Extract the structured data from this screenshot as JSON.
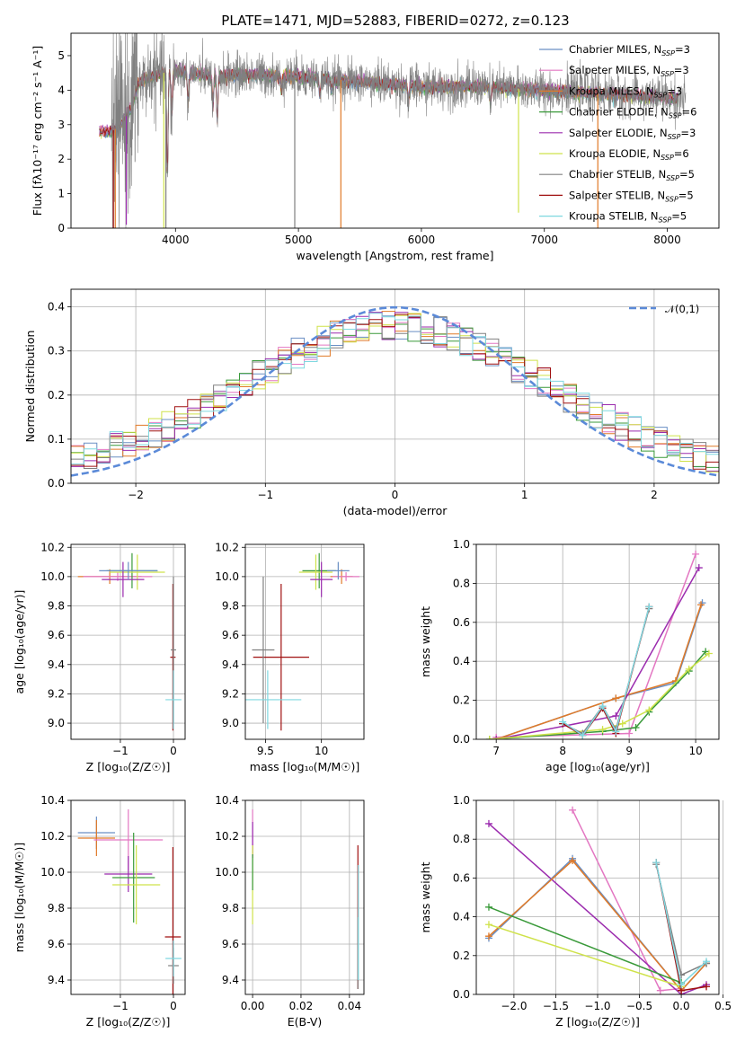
{
  "figure": {
    "title": "PLATE=1471, MJD=52883, FIBERID=0272, z=0.123"
  },
  "colors": {
    "chabrier_miles": "#6a8fc4",
    "salpeter_miles": "#e377c2",
    "kroupa_miles": "#e07a28",
    "chabrier_elodie": "#3a9a3a",
    "salpeter_elodie": "#9b2bae",
    "kroupa_elodie": "#cfe24a",
    "chabrier_stelib": "#808080",
    "salpeter_stelib": "#a01010",
    "kroupa_stelib": "#7fd8e0",
    "normal": "#5b8ad8",
    "grid": "#b0b0b0"
  },
  "legend": [
    {
      "label": "Chabrier MILES, N",
      "sub": "SSP",
      "suffix": "=3",
      "color_key": "chabrier_miles"
    },
    {
      "label": "Salpeter MILES, N",
      "sub": "SSP",
      "suffix": "=3",
      "color_key": "salpeter_miles"
    },
    {
      "label": "Kroupa MILES, N",
      "sub": "SSP",
      "suffix": "=3",
      "color_key": "kroupa_miles"
    },
    {
      "label": "Chabrier ELODIE, N",
      "sub": "SSP",
      "suffix": "=6",
      "color_key": "chabrier_elodie"
    },
    {
      "label": "Salpeter ELODIE, N",
      "sub": "SSP",
      "suffix": "=3",
      "color_key": "salpeter_elodie"
    },
    {
      "label": "Kroupa ELODIE, N",
      "sub": "SSP",
      "suffix": "=6",
      "color_key": "kroupa_elodie"
    },
    {
      "label": "Chabrier STELIB, N",
      "sub": "SSP",
      "suffix": "=5",
      "color_key": "chabrier_stelib"
    },
    {
      "label": "Salpeter STELIB, N",
      "sub": "SSP",
      "suffix": "=5",
      "color_key": "salpeter_stelib"
    },
    {
      "label": "Kroupa STELIB, N",
      "sub": "SSP",
      "suffix": "=5",
      "color_key": "kroupa_stelib"
    }
  ],
  "chart_data": [
    {
      "id": "spectrum",
      "type": "line",
      "xlabel": "wavelength [Angstrom, rest frame]",
      "ylabel": "Flux [fλ10⁻¹⁷ erg cm⁻² s⁻¹ A⁻¹]",
      "xlim": [
        3150,
        8420
      ],
      "ylim": [
        0,
        5.65
      ],
      "xticks": [
        4000,
        5000,
        6000,
        7000,
        8000
      ],
      "yticks": [
        0,
        1,
        2,
        3,
        4,
        5
      ],
      "legend_position": "right",
      "observed_color_key": "chabrier_stelib",
      "observed_range": [
        3480,
        8150
      ],
      "model_range": [
        3380,
        8090
      ],
      "continuum_knots": {
        "x": [
          3380,
          3480,
          3560,
          3640,
          3700,
          3800,
          3900,
          4000,
          4100,
          4300,
          4500,
          5000,
          5500,
          6000,
          6500,
          7000,
          7500,
          8100
        ],
        "y": [
          2.8,
          2.8,
          3.0,
          3.5,
          4.2,
          4.4,
          4.5,
          4.55,
          4.5,
          4.4,
          4.45,
          4.4,
          4.25,
          4.1,
          4.1,
          4.0,
          3.9,
          3.75
        ]
      },
      "absorption_features": [
        {
          "x": 3934,
          "depth": 3.5
        },
        {
          "x": 3969,
          "depth": 1.5
        },
        {
          "x": 4102,
          "depth": 0.9
        },
        {
          "x": 4305,
          "depth": 1.0
        },
        {
          "x": 4340,
          "depth": 1.5
        },
        {
          "x": 4861,
          "depth": 0.5
        },
        {
          "x": 5175,
          "depth": 0.6
        },
        {
          "x": 5270,
          "depth": 0.4
        },
        {
          "x": 5895,
          "depth": 0.6
        },
        {
          "x": 6563,
          "depth": 0.6
        }
      ],
      "spikes": [
        {
          "x": 3495,
          "ymin": 0,
          "color_key": "salpeter_stelib"
        },
        {
          "x": 3510,
          "ymin": 0,
          "color_key": "kroupa_miles"
        },
        {
          "x": 3600,
          "ymin": 0.1,
          "color_key": "salpeter_elodie"
        },
        {
          "x": 3905,
          "ymin": 0,
          "color_key": "kroupa_elodie"
        },
        {
          "x": 3922,
          "ymin": 0,
          "color_key": "chabrier_stelib"
        },
        {
          "x": 4970,
          "ymin": 0,
          "color_key": "chabrier_stelib"
        },
        {
          "x": 5345,
          "ymin": 0,
          "color_key": "kroupa_miles"
        },
        {
          "x": 6790,
          "ymin": 0.45,
          "color_key": "kroupa_elodie"
        },
        {
          "x": 7435,
          "ymin": 0,
          "color_key": "kroupa_miles"
        }
      ]
    },
    {
      "id": "residuals",
      "type": "histogram",
      "xlabel": "(data-model)/error",
      "ylabel": "Normed distribution",
      "xlim": [
        -2.5,
        2.5
      ],
      "ylim": [
        0,
        0.44
      ],
      "xticks": [
        -2,
        -1,
        0,
        1,
        2
      ],
      "yticks": [
        0.0,
        0.1,
        0.2,
        0.3,
        0.4
      ],
      "bin_width": 0.1,
      "normal_label": "𝒩(0,1)",
      "legend_position": "top-right"
    },
    {
      "id": "age_vs_Z",
      "type": "errorbar",
      "xlabel": "Z [log₁₀(Z/Z☉)]",
      "ylabel": "age  [log₁₀(age/yr)]",
      "xlim": [
        -1.93,
        0.22
      ],
      "ylim": [
        8.89,
        10.22
      ],
      "xticks": [
        -1,
        0
      ],
      "yticks": [
        9.0,
        9.2,
        9.4,
        9.6,
        9.8,
        10.0,
        10.2
      ],
      "points": [
        {
          "k": "kroupa_miles",
          "x": -1.2,
          "xe": 0.6,
          "y": 10.0,
          "ye": 0.05
        },
        {
          "k": "salpeter_miles",
          "x": -1.05,
          "xe": 0.65,
          "y": 10.0,
          "ye": 0.03
        },
        {
          "k": "chabrier_elodie",
          "x": -0.78,
          "xe": 0.48,
          "y": 10.04,
          "ye": 0.12
        },
        {
          "k": "kroupa_elodie",
          "x": -0.68,
          "xe": 0.52,
          "y": 10.03,
          "ye": 0.12
        },
        {
          "k": "salpeter_elodie",
          "x": -0.95,
          "xe": 0.4,
          "y": 9.98,
          "ye": 0.12
        },
        {
          "k": "chabrier_miles",
          "x": -0.85,
          "xe": 0.55,
          "y": 10.04,
          "ye": 0.06
        },
        {
          "k": "salpeter_stelib",
          "x": -0.01,
          "xe": 0.05,
          "y": 9.45,
          "ye": 0.5
        },
        {
          "k": "chabrier_stelib",
          "x": 0.0,
          "xe": 0.05,
          "y": 9.5,
          "ye": 0.5
        },
        {
          "k": "kroupa_stelib",
          "x": 0.0,
          "xe": 0.15,
          "y": 9.16,
          "ye": 0.2
        }
      ]
    },
    {
      "id": "age_vs_mass",
      "type": "errorbar",
      "xlabel": "mass [log₁₀(M/M☉)]",
      "ylabel": "",
      "xlim": [
        9.32,
        10.38
      ],
      "ylim": [
        8.89,
        10.22
      ],
      "xticks": [
        9.5,
        10.0
      ],
      "yticks": [
        9.0,
        9.2,
        9.4,
        9.6,
        9.8,
        10.0,
        10.2
      ],
      "points": [
        {
          "k": "kroupa_miles",
          "x": 10.18,
          "xe": 0.1,
          "y": 10.0,
          "ye": 0.05
        },
        {
          "k": "salpeter_miles",
          "x": 10.22,
          "xe": 0.12,
          "y": 10.0,
          "ye": 0.03
        },
        {
          "k": "chabrier_elodie",
          "x": 9.98,
          "xe": 0.15,
          "y": 10.04,
          "ye": 0.12
        },
        {
          "k": "kroupa_elodie",
          "x": 9.95,
          "xe": 0.15,
          "y": 10.03,
          "ye": 0.12
        },
        {
          "k": "salpeter_elodie",
          "x": 10.0,
          "xe": 0.1,
          "y": 9.98,
          "ye": 0.12
        },
        {
          "k": "chabrier_miles",
          "x": 10.15,
          "xe": 0.1,
          "y": 10.04,
          "ye": 0.06
        },
        {
          "k": "salpeter_stelib",
          "x": 9.64,
          "xe": 0.25,
          "y": 9.45,
          "ye": 0.5
        },
        {
          "k": "chabrier_stelib",
          "x": 9.48,
          "xe": 0.1,
          "y": 9.5,
          "ye": 0.5
        },
        {
          "k": "kroupa_stelib",
          "x": 9.52,
          "xe": 0.3,
          "y": 9.16,
          "ye": 0.2
        }
      ]
    },
    {
      "id": "weight_vs_age",
      "type": "line",
      "xlabel": "age  [log₁₀(age/yr)]",
      "ylabel": "mass weight",
      "xlim": [
        6.7,
        10.35
      ],
      "ylim": [
        0,
        1
      ],
      "xticks": [
        7,
        8,
        9,
        10
      ],
      "yticks": [
        0.0,
        0.2,
        0.4,
        0.6,
        0.8,
        1.0
      ],
      "series": [
        {
          "k": "chabrier_miles",
          "x": [
            7.0,
            8.8,
            9.7,
            10.1
          ],
          "y": [
            0.0,
            0.21,
            0.29,
            0.7
          ]
        },
        {
          "k": "salpeter_miles",
          "x": [
            7.0,
            9.0,
            10.0
          ],
          "y": [
            0.01,
            0.03,
            0.95
          ]
        },
        {
          "k": "kroupa_miles",
          "x": [
            7.0,
            8.8,
            9.7,
            10.08
          ],
          "y": [
            0.0,
            0.21,
            0.3,
            0.69
          ]
        },
        {
          "k": "chabrier_elodie",
          "x": [
            6.9,
            8.6,
            9.1,
            9.3,
            9.9,
            10.15
          ],
          "y": [
            0.0,
            0.04,
            0.06,
            0.14,
            0.35,
            0.45
          ]
        },
        {
          "k": "salpeter_elodie",
          "x": [
            7.0,
            8.8,
            10.05
          ],
          "y": [
            0.0,
            0.12,
            0.88
          ]
        },
        {
          "k": "kroupa_elodie",
          "x": [
            6.9,
            8.6,
            8.9,
            9.3,
            9.9,
            10.2
          ],
          "y": [
            0.0,
            0.05,
            0.08,
            0.15,
            0.36,
            0.44
          ]
        },
        {
          "k": "chabrier_stelib",
          "x": [
            8.0,
            8.3,
            8.6,
            8.8,
            9.3
          ],
          "y": [
            0.08,
            0.03,
            0.17,
            0.05,
            0.67
          ]
        },
        {
          "k": "salpeter_stelib",
          "x": [
            8.0,
            8.3,
            8.6,
            8.8,
            9.3
          ],
          "y": [
            0.08,
            0.02,
            0.16,
            0.03,
            0.68
          ]
        },
        {
          "k": "kroupa_stelib",
          "x": [
            8.0,
            8.3,
            8.6,
            8.8,
            9.3
          ],
          "y": [
            0.09,
            0.02,
            0.17,
            0.04,
            0.68
          ]
        }
      ]
    },
    {
      "id": "mass_vs_Z",
      "type": "errorbar",
      "xlabel": "Z [log₁₀(Z/Z☉)]",
      "ylabel": "mass [log₁₀(M/M☉)]",
      "xlim": [
        -1.93,
        0.22
      ],
      "ylim": [
        9.32,
        10.4
      ],
      "xticks": [
        -1,
        0
      ],
      "yticks": [
        9.4,
        9.6,
        9.8,
        10.0,
        10.2,
        10.4
      ],
      "points": [
        {
          "k": "chabrier_miles",
          "x": -1.45,
          "xe": 0.35,
          "y": 10.22,
          "ye": 0.09
        },
        {
          "k": "kroupa_miles",
          "x": -1.45,
          "xe": 0.35,
          "y": 10.19,
          "ye": 0.1
        },
        {
          "k": "salpeter_miles",
          "x": -0.85,
          "xe": 0.65,
          "y": 10.18,
          "ye": 0.17
        },
        {
          "k": "salpeter_elodie",
          "x": -0.85,
          "xe": 0.45,
          "y": 9.99,
          "ye": 0.1
        },
        {
          "k": "chabrier_elodie",
          "x": -0.75,
          "xe": 0.4,
          "y": 9.97,
          "ye": 0.25
        },
        {
          "k": "kroupa_elodie",
          "x": -0.7,
          "xe": 0.45,
          "y": 9.93,
          "ye": 0.22
        },
        {
          "k": "salpeter_stelib",
          "x": -0.01,
          "xe": 0.15,
          "y": 9.64,
          "ye": 0.5
        },
        {
          "k": "chabrier_stelib",
          "x": 0.0,
          "xe": 0.1,
          "y": 9.48,
          "ye": 0.1
        },
        {
          "k": "kroupa_stelib",
          "x": 0.0,
          "xe": 0.15,
          "y": 9.52,
          "ye": 0.1
        }
      ]
    },
    {
      "id": "mass_vs_EBV",
      "type": "errorbar",
      "xlabel": "E(B-V)",
      "ylabel": "",
      "xlim": [
        -0.003,
        0.046
      ],
      "ylim": [
        9.32,
        10.4
      ],
      "xticks": [
        0.0,
        0.02,
        0.04
      ],
      "xticklabels": [
        "0.00",
        "0.02",
        "0.04"
      ],
      "yticks": [
        9.4,
        9.6,
        9.8,
        10.0,
        10.2,
        10.4
      ],
      "points": [
        {
          "k": "salpeter_miles",
          "x": 0.0,
          "xe": 0,
          "y": 10.22,
          "ye": 0.13
        },
        {
          "k": "salpeter_elodie",
          "x": 0.0,
          "xe": 0,
          "y": 10.18,
          "ye": 0.1
        },
        {
          "k": "kroupa_elodie",
          "x": 0.0,
          "xe": 0,
          "y": 9.93,
          "ye": 0.22
        },
        {
          "k": "chabrier_elodie",
          "x": 0.0,
          "xe": 0,
          "y": 10.0,
          "ye": 0.1
        },
        {
          "k": "salpeter_stelib",
          "x": 0.0435,
          "xe": 0,
          "y": 9.75,
          "ye": 0.4
        },
        {
          "k": "chabrier_stelib",
          "x": 0.0435,
          "xe": 0,
          "y": 9.55,
          "ye": 0.2
        },
        {
          "k": "kroupa_stelib",
          "x": 0.0437,
          "xe": 0,
          "y": 9.72,
          "ye": 0.32
        }
      ]
    },
    {
      "id": "weight_vs_Z",
      "type": "line",
      "xlabel": "Z [log₁₀(Z/Z☉)]",
      "ylabel": "mass weight",
      "xlim": [
        -2.45,
        0.45
      ],
      "ylim": [
        0,
        1
      ],
      "xticks": [
        -2.0,
        -1.5,
        -1.0,
        -0.5,
        0.0,
        0.5
      ],
      "xticklabels": [
        "−2.0",
        "−1.5",
        "−1.0",
        "−0.5",
        "0.0",
        "0.5"
      ],
      "yticks": [
        0.0,
        0.2,
        0.4,
        0.6,
        0.8,
        1.0
      ],
      "series": [
        {
          "k": "salpeter_miles",
          "x": [
            -1.3,
            -0.25,
            0.0
          ],
          "y": [
            0.95,
            0.02,
            0.03
          ]
        },
        {
          "k": "salpeter_elodie",
          "x": [
            -2.3,
            0.0,
            0.3
          ],
          "y": [
            0.88,
            0.0,
            0.05
          ]
        },
        {
          "k": "chabrier_miles",
          "x": [
            -2.3,
            -1.3,
            0.0,
            0.3
          ],
          "y": [
            0.29,
            0.7,
            0.02,
            0.16
          ]
        },
        {
          "k": "kroupa_miles",
          "x": [
            -2.3,
            -1.3,
            0.0,
            0.3
          ],
          "y": [
            0.3,
            0.69,
            0.02,
            0.16
          ]
        },
        {
          "k": "chabrier_elodie",
          "x": [
            -2.3,
            0.0
          ],
          "y": [
            0.45,
            0.06
          ]
        },
        {
          "k": "kroupa_elodie",
          "x": [
            -2.3,
            0.0
          ],
          "y": [
            0.36,
            0.04
          ]
        },
        {
          "k": "chabrier_stelib",
          "x": [
            -0.3,
            0.0,
            0.3
          ],
          "y": [
            0.67,
            0.1,
            0.16
          ]
        },
        {
          "k": "salpeter_stelib",
          "x": [
            -0.3,
            0.0,
            0.3
          ],
          "y": [
            0.68,
            0.02,
            0.04
          ]
        },
        {
          "k": "kroupa_stelib",
          "x": [
            -0.3,
            0.0,
            0.3
          ],
          "y": [
            0.68,
            0.05,
            0.17
          ]
        }
      ]
    }
  ]
}
